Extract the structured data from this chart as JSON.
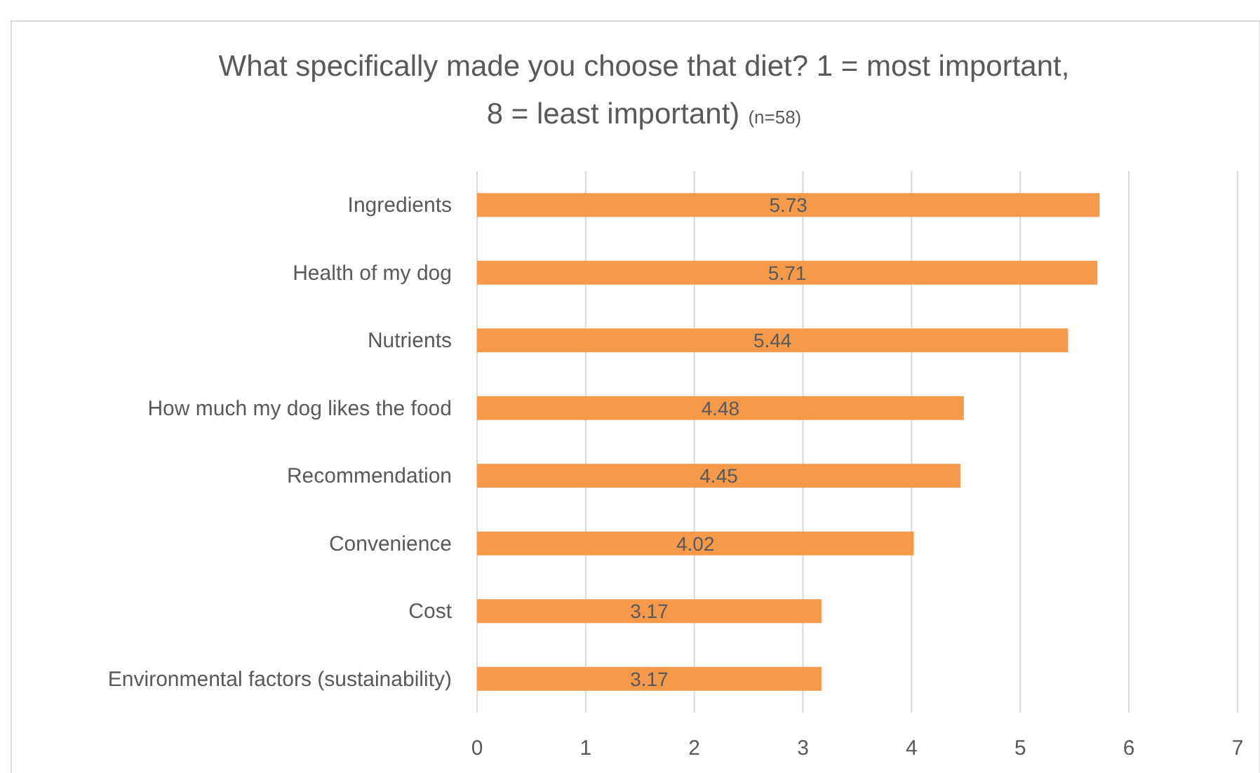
{
  "chart_data": {
    "type": "bar",
    "orientation": "horizontal",
    "title": "What specifically made you choose that diet? 1 = most important, 8 = least important)",
    "subtitle": "(n=58)",
    "categories": [
      "Ingredients",
      "Health of my dog",
      "Nutrients",
      "How much my dog likes the food",
      "Recommendation",
      "Convenience",
      "Cost",
      "Environmental factors (sustainability)"
    ],
    "values": [
      5.73,
      5.71,
      5.44,
      4.48,
      4.45,
      4.02,
      3.17,
      3.17
    ],
    "color": "#f5994a",
    "xlim": [
      0,
      7
    ],
    "xticks": [
      0,
      1,
      2,
      3,
      4,
      5,
      6,
      7
    ],
    "grid": "x",
    "data_labels": true
  }
}
